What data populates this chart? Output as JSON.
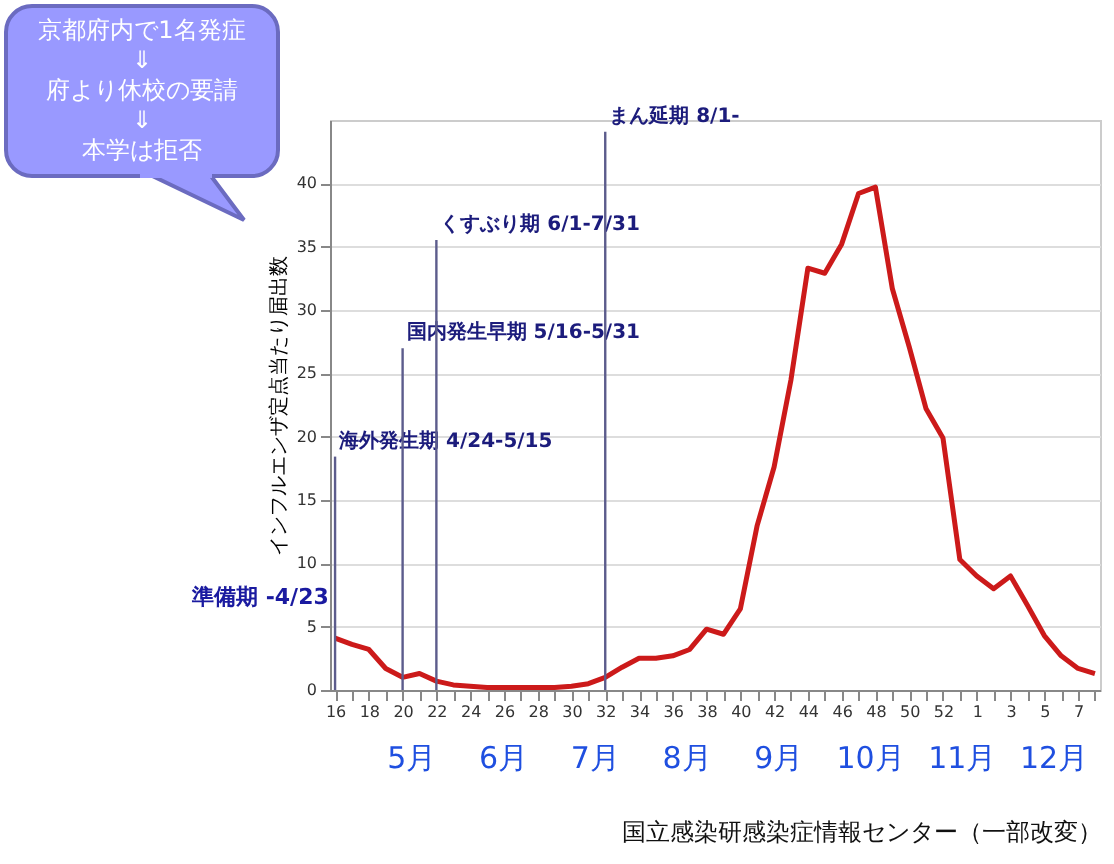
{
  "chart_data": {
    "type": "line",
    "ylabel": "インフルエンザ定点当たり届出数",
    "categories": [
      "16",
      null,
      "18",
      null,
      "20",
      null,
      "22",
      null,
      "24",
      null,
      "26",
      null,
      "28",
      null,
      "30",
      null,
      "32",
      null,
      "34",
      null,
      "36",
      null,
      "38",
      null,
      "40",
      null,
      "42",
      null,
      "44",
      null,
      "46",
      null,
      "48",
      null,
      "50",
      null,
      "52",
      null,
      "1",
      null,
      "3",
      null,
      "5",
      null,
      "7",
      null
    ],
    "values": [
      4.1,
      3.6,
      3.2,
      1.7,
      1.0,
      1.3,
      0.7,
      0.4,
      0.3,
      0.2,
      0.2,
      0.2,
      0.2,
      0.2,
      0.3,
      0.5,
      1.0,
      1.8,
      2.5,
      2.5,
      2.7,
      3.2,
      4.8,
      4.4,
      6.4,
      13.0,
      17.6,
      24.5,
      33.3,
      32.9,
      35.2,
      39.2,
      39.7,
      31.7,
      27.1,
      22.2,
      19.9,
      10.3,
      9.0,
      8.0,
      9.0,
      6.7,
      4.3,
      2.7,
      1.7,
      1.3
    ],
    "color": "#cc1a1a",
    "ylim": [
      0,
      45
    ],
    "yticks": [
      0,
      5,
      10,
      15,
      20,
      25,
      30,
      35,
      40
    ],
    "grid": "y",
    "line_style": "solid",
    "ref_lines": [
      {
        "axis": "x",
        "value": "16",
        "label": "海外発生期 4/24-5/15",
        "color": "#5c5c8c"
      },
      {
        "axis": "x",
        "value": "20",
        "label": "国内発生早期 5/16-5/31",
        "color": "#5c5c8c"
      },
      {
        "axis": "x",
        "value": "22",
        "label": "くすぶり期 6/1-7/31",
        "color": "#5c5c8c"
      },
      {
        "axis": "x",
        "value": "32",
        "label": "まん延期 8/1-",
        "color": "#5c5c8c"
      }
    ],
    "annotations": [
      "京都府内で1名発症\n⇓\n府より休校の要請\n⇓\n本学は拒否",
      "準備期 -4/23",
      "5月",
      "6月",
      "7月",
      "8月",
      "9月",
      "10月",
      "11月",
      "12月",
      "国立感染研感染症情報センター（一部改変）"
    ]
  }
}
